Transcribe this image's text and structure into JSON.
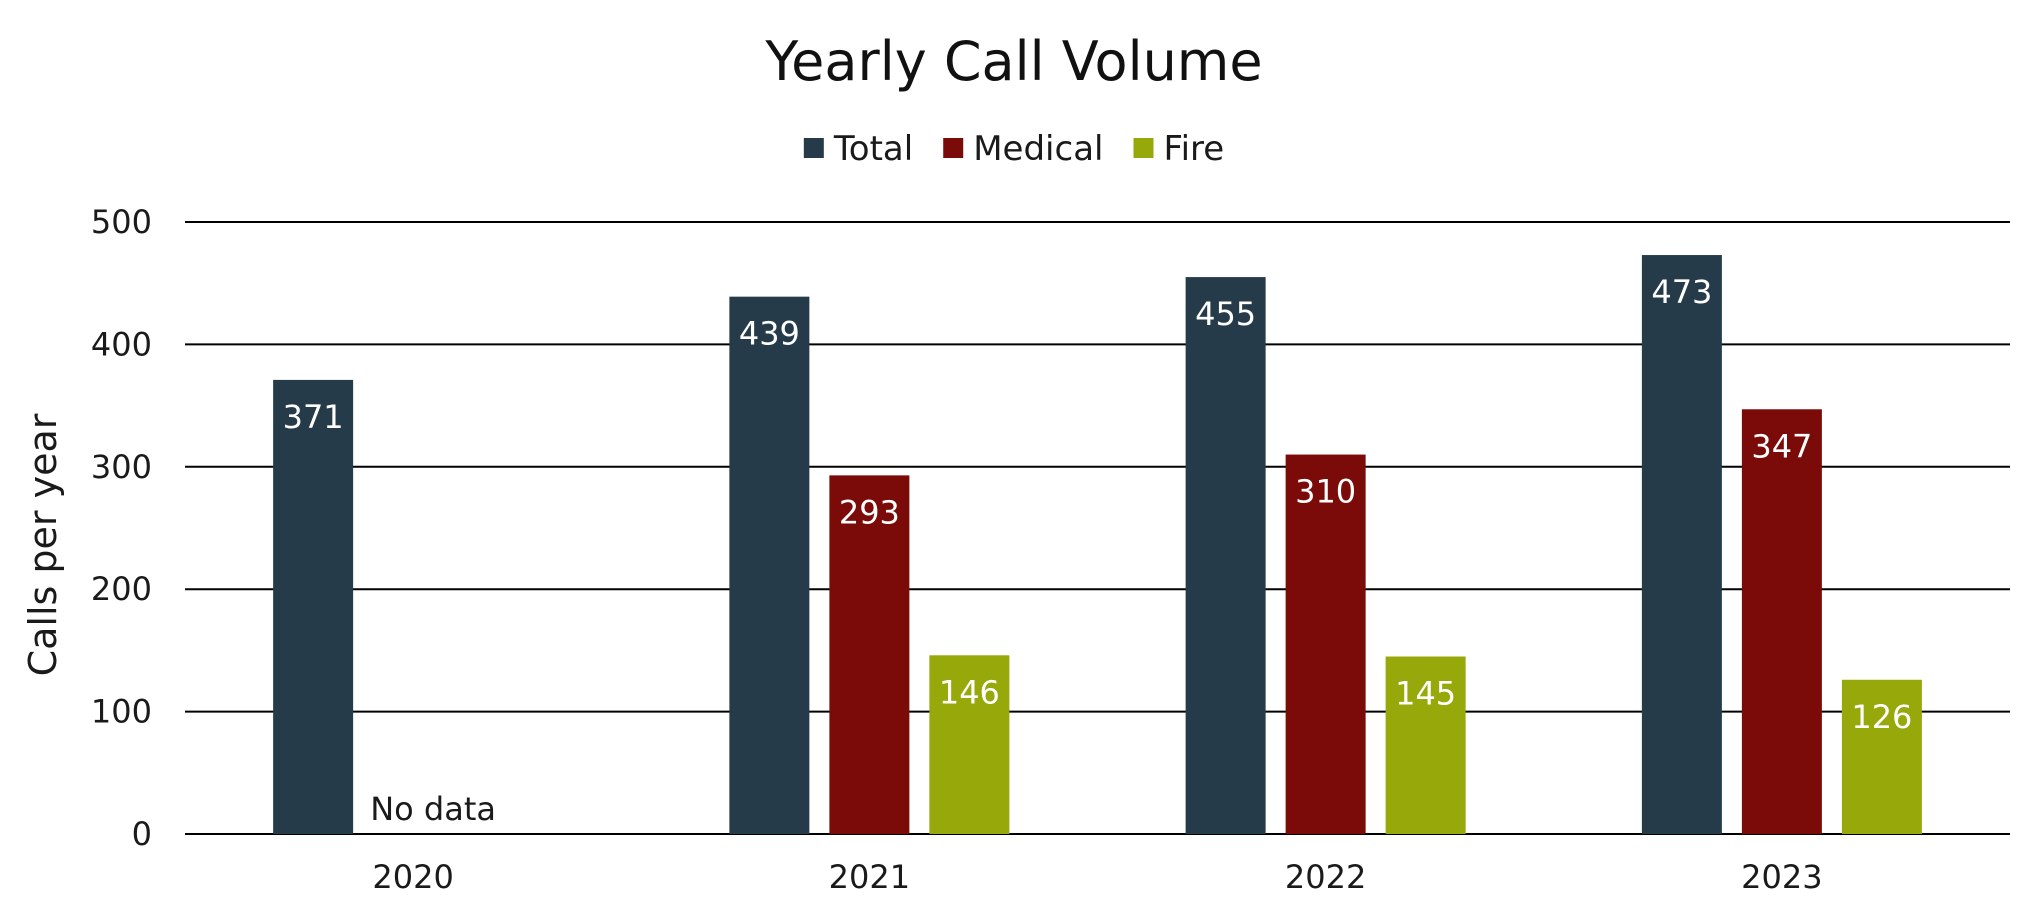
{
  "chart_data": {
    "type": "bar",
    "title": "Yearly Call Volume",
    "xlabel": "",
    "ylabel": "Calls per year",
    "ylim": [
      0,
      500
    ],
    "yticks": [
      0,
      100,
      200,
      300,
      400,
      500
    ],
    "grid": true,
    "legend_position": "top",
    "categories": [
      "2020",
      "2021",
      "2022",
      "2023"
    ],
    "series": [
      {
        "name": "Total",
        "color": "#253b4a",
        "values": [
          371,
          439,
          455,
          473
        ]
      },
      {
        "name": "Medical",
        "color": "#7a0b08",
        "values": [
          null,
          293,
          310,
          347
        ]
      },
      {
        "name": "Fire",
        "color": "#96a80a",
        "values": [
          null,
          146,
          145,
          126
        ]
      }
    ],
    "annotations": [
      {
        "category": "2020",
        "text": "No data"
      }
    ]
  }
}
